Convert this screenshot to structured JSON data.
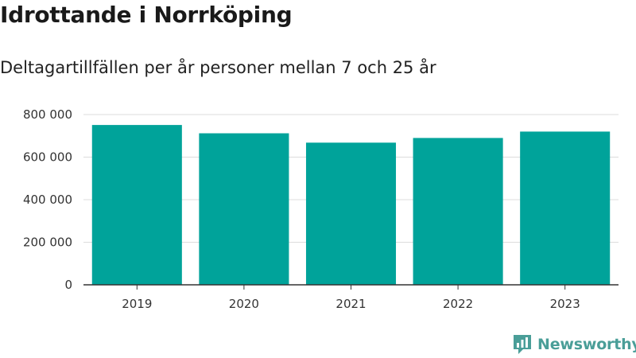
{
  "header": {
    "title": "Idrottande i Norrköping",
    "subtitle": "Deltagartillfällen per år personer mellan 7 och 25 år"
  },
  "brand": {
    "name": "Newsworthy",
    "icon": "newsworthy-logo-icon",
    "color": "#4a9e98"
  },
  "chart_data": {
    "type": "bar",
    "categories": [
      "2019",
      "2020",
      "2021",
      "2022",
      "2023"
    ],
    "values": [
      751000,
      712000,
      668000,
      690000,
      720000
    ],
    "yticks": [
      0,
      200000,
      400000,
      600000,
      800000
    ],
    "ytick_labels": [
      "0",
      "200 000",
      "400 000",
      "600 000",
      "800 000"
    ],
    "ylim": [
      0,
      800000
    ],
    "xlabel": "",
    "ylabel": "",
    "bar_color": "#00a39a",
    "grid": true,
    "legend": "none"
  }
}
